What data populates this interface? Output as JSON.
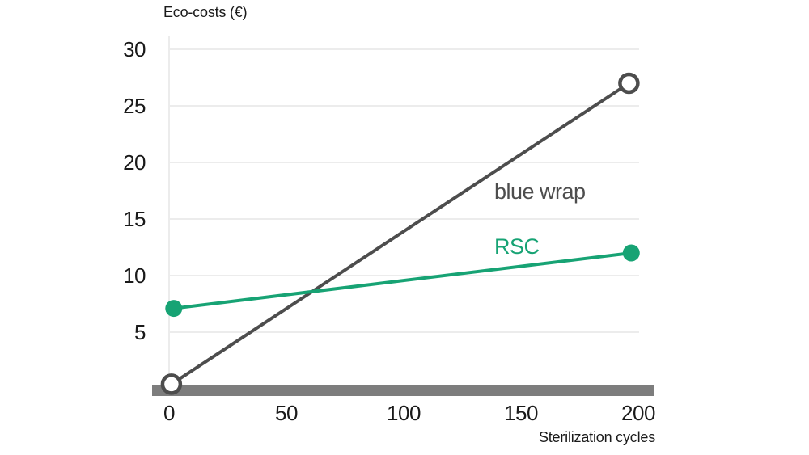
{
  "page": {
    "background": "#ffffff"
  },
  "chart_data": {
    "type": "line",
    "title": "Eco-costs (€)",
    "xlabel": "Sterilization cycles",
    "ylabel": "Eco-costs (€)",
    "xlim": [
      0,
      200
    ],
    "ylim": [
      0,
      30
    ],
    "x_ticks": [
      0,
      50,
      100,
      150,
      200
    ],
    "y_ticks": [
      5,
      10,
      15,
      20,
      25,
      30
    ],
    "grid": "horizontal-only",
    "legend": "inline-text-labels",
    "gridline_color": "#ececec",
    "axis_bar_color": "#7d7d7d",
    "text_color": "#1a1a1a",
    "series": [
      {
        "name": "blue wrap",
        "color": "#4d4d4d",
        "marker": "open-circle",
        "points": [
          {
            "x": 1,
            "y": 0.4
          },
          {
            "x": 196,
            "y": 27
          }
        ]
      },
      {
        "name": "RSC",
        "color": "#17a374",
        "marker": "filled-circle",
        "points": [
          {
            "x": 2,
            "y": 7.1
          },
          {
            "x": 197,
            "y": 12
          }
        ]
      }
    ]
  }
}
